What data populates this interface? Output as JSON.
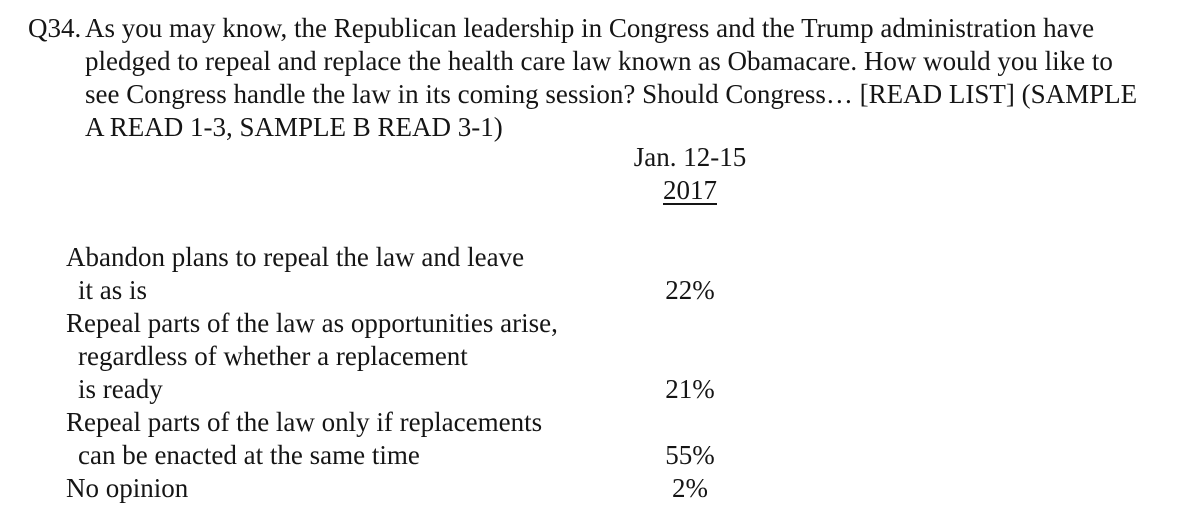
{
  "question": {
    "number": "Q34.",
    "lines": [
      "As you may know, the Republican leadership in Congress and the Trump administration have",
      "pledged to repeal and replace the health care law known as Obamacare. How would you like to",
      "see Congress handle the law in its coming session? Should Congress… [READ LIST] (SAMPLE",
      "A READ 1-3, SAMPLE B READ 3-1)"
    ]
  },
  "column_header": {
    "date_range": "Jan. 12-15",
    "year": "2017"
  },
  "results": {
    "rows": [
      {
        "lines": [
          "Abandon plans to repeal the law and leave",
          "it as is"
        ],
        "value": "22%"
      },
      {
        "lines": [
          "Repeal parts of the law as opportunities arise,",
          "regardless of whether a replacement",
          "is ready"
        ],
        "value": "21%"
      },
      {
        "lines": [
          "Repeal parts of the law only if replacements",
          "can be enacted at the same time"
        ],
        "value": "55%"
      },
      {
        "lines": [
          "No opinion"
        ],
        "value": "2%"
      }
    ]
  },
  "colors": {
    "text": "#151515",
    "background": "#ffffff"
  }
}
